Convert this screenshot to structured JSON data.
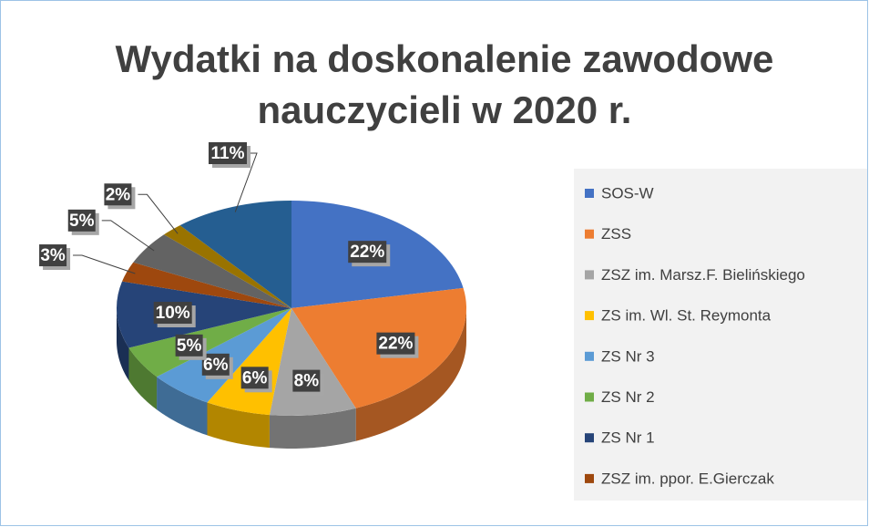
{
  "chart_data": {
    "type": "pie3d",
    "title": [
      "Wydatki na doskonalenie zawodowe",
      "nauczycieli w 2020 r."
    ],
    "categories": [
      "SOS-W",
      "ZSS",
      "ZSZ im. Marsz.F. Bielińskiego",
      "ZS im. Wl. St. Reymonta",
      "ZS Nr 3",
      "ZS Nr 2",
      "ZS Nr 1",
      "ZSZ im. ppor. E.Gierczak",
      null,
      null,
      null
    ],
    "values": [
      22,
      22,
      8,
      6,
      6,
      5,
      10,
      3,
      5,
      2,
      11
    ],
    "value_labels": [
      "22%",
      "22%",
      "8%",
      "6%",
      "6%",
      "5%",
      "10%",
      "3%",
      "5%",
      "2%",
      "11%"
    ],
    "colors": [
      "#4472c4",
      "#ed7d31",
      "#a5a5a5",
      "#ffc000",
      "#5b9bd5",
      "#70ad47",
      "#264478",
      "#9e480e",
      "#636363",
      "#997300",
      "#255e91"
    ],
    "legend": "right"
  }
}
